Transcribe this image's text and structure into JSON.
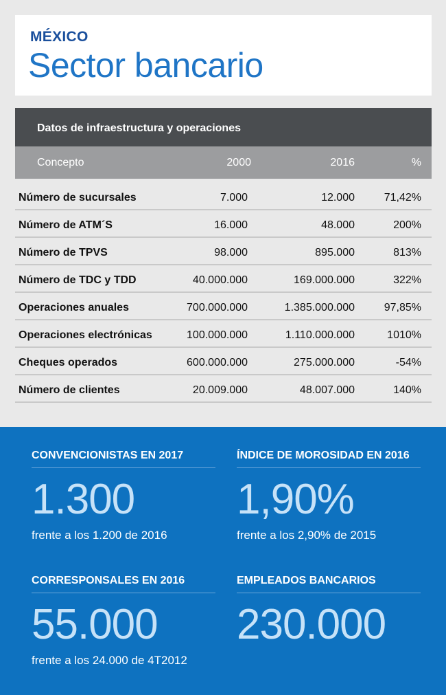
{
  "header": {
    "country": "MÉXICO",
    "title": "Sector bancario"
  },
  "table": {
    "title": "Datos de infraestructura y operaciones",
    "columns": [
      "Concepto",
      "2000",
      "2016",
      "%"
    ],
    "rows": [
      [
        "Número de sucursales",
        "7.000",
        "12.000",
        "71,42%"
      ],
      [
        "Número de ATM´S",
        "16.000",
        "48.000",
        "200%"
      ],
      [
        "Número de TPVS",
        "98.000",
        "895.000",
        "813%"
      ],
      [
        "Número de TDC y TDD",
        "40.000.000",
        "169.000.000",
        "322%"
      ],
      [
        "Operaciones anuales",
        "700.000.000",
        "1.385.000.000",
        "97,85%"
      ],
      [
        "Operaciones electrónicas",
        "100.000.000",
        "1.110.000.000",
        "1010%"
      ],
      [
        "Cheques operados",
        "600.000.000",
        "275.000.000",
        "-54%"
      ],
      [
        "Número de clientes",
        "20.009.000",
        "48.007.000",
        "140%"
      ]
    ]
  },
  "stats": [
    {
      "label": "CONVENCIONISTAS EN 2017",
      "value": "1.300",
      "sub": "frente a los 1.200 de 2016"
    },
    {
      "label": "ÍNDICE DE MOROSIDAD  EN 2016",
      "value": "1,90%",
      "sub": "frente a los 2,90% de 2015"
    },
    {
      "label": "CORRESPONSALES  EN 2016",
      "value": "55.000",
      "sub": "frente a los 24.000 de 4T2012"
    },
    {
      "label": "EMPLEADOS BANCARIOS",
      "value": "230.000",
      "sub": ""
    }
  ],
  "colors": {
    "background": "#e9e9e9",
    "country": "#1a4f9c",
    "title": "#1f75c6",
    "table_title_bg": "#4a4d50",
    "table_head_bg": "#9c9d9f",
    "stats_bg": "#0e72c0",
    "stat_value": "#c6e2f8"
  }
}
